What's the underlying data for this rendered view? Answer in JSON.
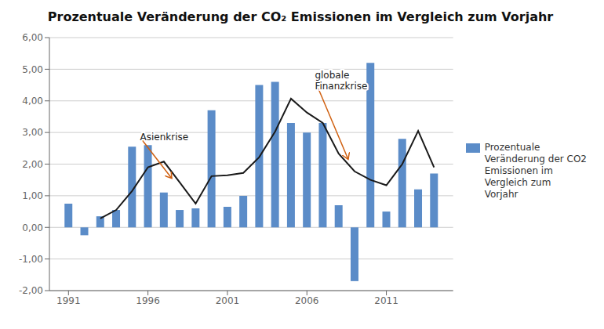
{
  "chart_data": {
    "type": "bar",
    "title": "Prozentuale Veränderung der CO₂ Emissionen im Vergleich zum Vorjahr",
    "x": [
      1991,
      1992,
      1993,
      1994,
      1995,
      1996,
      1997,
      1998,
      1999,
      2000,
      2001,
      2002,
      2003,
      2004,
      2005,
      2006,
      2007,
      2008,
      2009,
      2010,
      2011,
      2012,
      2013,
      2014
    ],
    "series": [
      {
        "name": "Prozentuale\nVeränderung der CO2\nEmissionen im\nVergleich zum\nVorjahr",
        "type": "bar",
        "color": "#5b8cc8",
        "values": [
          0.75,
          -0.25,
          0.35,
          0.55,
          2.55,
          2.6,
          1.1,
          0.55,
          0.6,
          3.7,
          0.65,
          1.0,
          4.5,
          4.6,
          3.3,
          3.0,
          3.3,
          0.7,
          -1.7,
          5.2,
          0.5,
          2.8,
          1.2,
          1.7
        ]
      },
      {
        "type": "line",
        "color": "#1a1a1a",
        "values": [
          null,
          null,
          0.28,
          0.55,
          1.15,
          1.9,
          2.08,
          1.42,
          0.75,
          1.62,
          1.65,
          1.72,
          2.22,
          3.03,
          4.07,
          3.63,
          3.3,
          2.33,
          1.77,
          1.5,
          1.33,
          2.0,
          3.05,
          1.9
        ]
      }
    ],
    "xlim": [
      1989.8,
      2015.2
    ],
    "xticks": [
      1991,
      1996,
      2001,
      2006,
      2011
    ],
    "ylim": [
      -2.0,
      6.0
    ],
    "yticks": [
      {
        "value": -2.0,
        "label": "-2,00"
      },
      {
        "value": -1.0,
        "label": "-1,00"
      },
      {
        "value": 0.0,
        "label": "0,00"
      },
      {
        "value": 1.0,
        "label": "1,00"
      },
      {
        "value": 2.0,
        "label": "2,00"
      },
      {
        "value": 3.0,
        "label": "3,00"
      },
      {
        "value": 4.0,
        "label": "4,00"
      },
      {
        "value": 5.0,
        "label": "5,00"
      },
      {
        "value": 6.0,
        "label": "6,00"
      }
    ],
    "grid": true,
    "legend": "right",
    "annotations": [
      {
        "text": "Asienkrise",
        "x": 1997.5,
        "y": 1.55,
        "text_x": 1995.5,
        "text_y": 2.85,
        "color": "#d06010"
      },
      {
        "text": "globale\nFinanzkrise",
        "x": 2008.6,
        "y": 2.15,
        "text_x": 2006.5,
        "text_y": 4.65,
        "color": "#d06010"
      }
    ]
  }
}
